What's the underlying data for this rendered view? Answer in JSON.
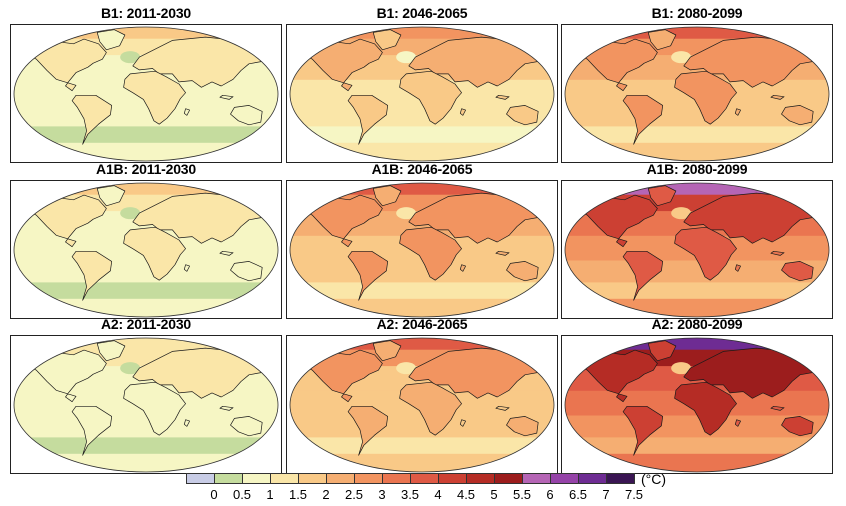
{
  "figure": {
    "unit_label": "(°C)",
    "rows": [
      {
        "scenario": "B1",
        "panels": [
          {
            "title": "B1: 2011-2030",
            "global_warming_level_C": 0.8
          },
          {
            "title": "B1: 2046-2065",
            "global_warming_level_C": 1.5
          },
          {
            "title": "B1: 2080-2099",
            "global_warming_level_C": 2.0
          }
        ]
      },
      {
        "scenario": "A1B",
        "panels": [
          {
            "title": "A1B: 2011-2030",
            "global_warming_level_C": 0.8
          },
          {
            "title": "A1B: 2046-2065",
            "global_warming_level_C": 2.0
          },
          {
            "title": "A1B: 2080-2099",
            "global_warming_level_C": 3.0
          }
        ]
      },
      {
        "scenario": "A2",
        "panels": [
          {
            "title": "A2: 2011-2030",
            "global_warming_level_C": 0.7
          },
          {
            "title": "A2: 2046-2065",
            "global_warming_level_C": 1.9
          },
          {
            "title": "A2: 2080-2099",
            "global_warming_level_C": 3.5
          }
        ]
      }
    ]
  },
  "colorbar": {
    "tick_labels": [
      "0",
      "0.5",
      "1",
      "1.5",
      "2",
      "2.5",
      "3",
      "3.5",
      "4",
      "4.5",
      "5",
      "5.5",
      "6",
      "6.5",
      "7",
      "7.5"
    ],
    "colors": [
      "#c8cce6",
      "#c5dc9e",
      "#f6f6c4",
      "#fae6a8",
      "#f9c987",
      "#f5ae72",
      "#f29460",
      "#ea7550",
      "#df5a45",
      "#cc4033",
      "#b52c25",
      "#9c1d1d",
      "#b565b5",
      "#9543a8",
      "#6e2c93",
      "#3a1553"
    ]
  }
}
